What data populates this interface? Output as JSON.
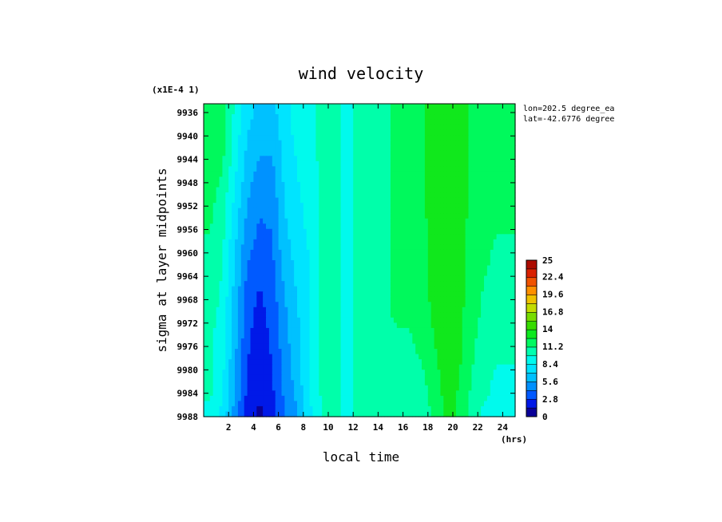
{
  "chart_data": {
    "type": "heatmap",
    "title": "wind velocity",
    "xlabel": "local time",
    "x_unit": "(hrs)",
    "ylabel": "sigma at layer midpoints",
    "y_scale_note": "(x1E-4 1)",
    "location": [
      "lon=202.5 degree_ea",
      "lat=-42.6776 degree"
    ],
    "xlim": [
      0,
      25
    ],
    "ylim": [
      9934.5,
      9988
    ],
    "x_ticks": [
      "2",
      "4",
      "6",
      "8",
      "10",
      "12",
      "14",
      "16",
      "18",
      "20",
      "22",
      "24"
    ],
    "y_ticks": [
      "9936",
      "9940",
      "9944",
      "9948",
      "9952",
      "9956",
      "9960",
      "9964",
      "9968",
      "9972",
      "9976",
      "9980",
      "9984",
      "9988"
    ],
    "colorbar": {
      "min": 0,
      "max": 25,
      "labels": [
        "25",
        "22.4",
        "19.6",
        "16.8",
        "14",
        "11.2",
        "8.4",
        "5.6",
        "2.8",
        "0"
      ]
    },
    "x": [
      0.5,
      1.5,
      2.5,
      3.5,
      4.5,
      5.5,
      6.5,
      7.5,
      8.5,
      9.5,
      10.5,
      11.5,
      12.5,
      13.5,
      14.5,
      15.5,
      16.5,
      17.5,
      18.5,
      19.5,
      20.5,
      21.5,
      22.5,
      23.5,
      24.5
    ],
    "y": [
      9936,
      9944,
      9952,
      9960,
      9968,
      9976,
      9984,
      9988
    ],
    "values": [
      [
        12.5,
        12.0,
        9.5,
        7.5,
        6.5,
        6.5,
        8.0,
        9.0,
        9.5,
        10.0,
        10.0,
        9.5,
        10.0,
        10.5,
        11.0,
        11.5,
        12.0,
        12.5,
        13.0,
        13.5,
        13.0,
        12.5,
        12.0,
        12.0,
        12.0
      ],
      [
        12.0,
        11.5,
        9.0,
        6.5,
        5.5,
        5.5,
        7.5,
        8.5,
        9.5,
        10.0,
        10.0,
        9.5,
        10.0,
        10.5,
        11.0,
        11.5,
        12.0,
        12.5,
        13.0,
        13.5,
        13.0,
        12.5,
        12.0,
        12.0,
        12.0
      ],
      [
        11.5,
        10.5,
        8.0,
        5.5,
        4.5,
        4.5,
        7.0,
        8.0,
        9.0,
        10.0,
        10.0,
        9.5,
        10.0,
        10.5,
        11.0,
        11.5,
        12.0,
        12.5,
        13.0,
        13.5,
        13.0,
        12.5,
        12.0,
        11.5,
        11.5
      ],
      [
        11.0,
        10.0,
        7.0,
        4.5,
        3.5,
        4.0,
        6.5,
        7.5,
        8.5,
        10.0,
        10.0,
        9.5,
        10.0,
        10.5,
        11.0,
        11.5,
        11.5,
        12.0,
        13.0,
        13.5,
        13.0,
        12.0,
        11.5,
        11.0,
        11.0
      ],
      [
        10.5,
        9.5,
        6.5,
        3.5,
        2.5,
        3.5,
        5.5,
        7.0,
        8.5,
        10.0,
        10.0,
        9.5,
        10.0,
        10.5,
        11.0,
        11.5,
        11.5,
        12.0,
        13.0,
        13.5,
        13.0,
        12.0,
        11.0,
        10.5,
        10.5
      ],
      [
        10.0,
        9.0,
        6.0,
        3.0,
        2.0,
        3.0,
        5.0,
        6.5,
        8.5,
        10.0,
        10.0,
        9.5,
        10.0,
        10.5,
        11.0,
        11.0,
        11.0,
        11.5,
        12.5,
        13.5,
        13.0,
        11.5,
        10.5,
        10.0,
        10.0
      ],
      [
        10.0,
        8.5,
        5.5,
        2.5,
        1.5,
        2.5,
        4.5,
        6.0,
        8.5,
        10.0,
        10.0,
        9.5,
        10.0,
        10.5,
        10.5,
        10.5,
        10.0,
        10.5,
        12.0,
        13.0,
        12.5,
        11.0,
        10.0,
        9.5,
        9.5
      ],
      [
        9.5,
        8.0,
        5.0,
        2.0,
        1.0,
        2.0,
        4.0,
        5.5,
        8.0,
        10.0,
        10.0,
        9.5,
        10.0,
        10.5,
        10.5,
        10.5,
        10.0,
        10.0,
        11.5,
        13.0,
        12.5,
        10.5,
        9.5,
        9.5,
        9.5
      ]
    ]
  }
}
